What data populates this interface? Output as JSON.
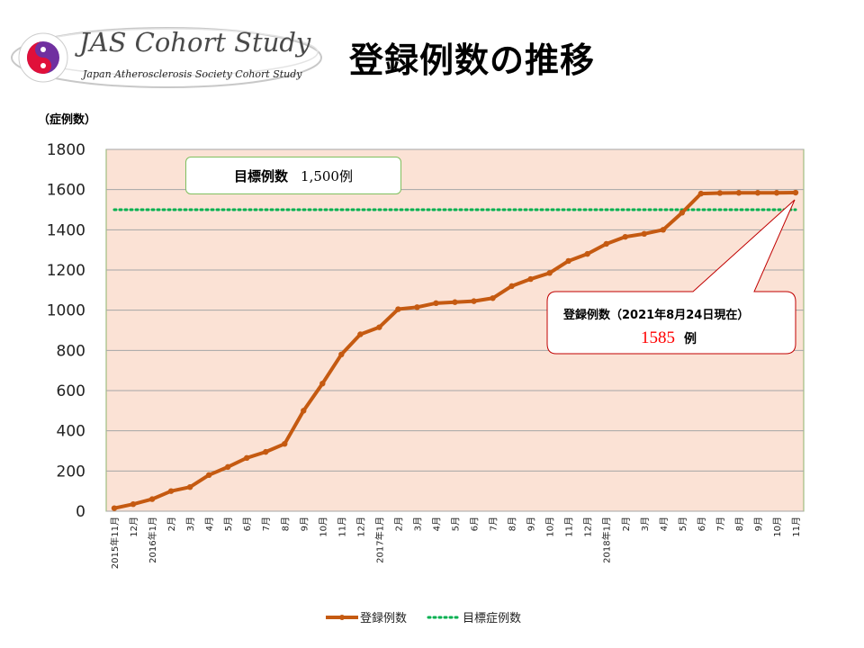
{
  "logo": {
    "title": "JAS Cohort Study",
    "subtitle": "Japan Atherosclerosis Society Cohort Study"
  },
  "page_title": "登録例数の推移",
  "y_unit": "（症例数）",
  "target_box": {
    "label": "目標例数",
    "value": "1,500例"
  },
  "callout": {
    "line1": "登録例数（2021年8月24日現在）",
    "value": "1585",
    "unit": "例"
  },
  "legend": {
    "series1": "登録例数",
    "series2": "目標症例数"
  },
  "colors": {
    "plot_bg": "#fbe2d5",
    "line": "#c55a11",
    "target": "#00b050",
    "grid": "#a6a6a6",
    "callout_value": "#ff0000"
  },
  "chart_data": {
    "type": "line",
    "ylim": [
      0,
      1800
    ],
    "yticks": [
      0,
      200,
      400,
      600,
      800,
      1000,
      1200,
      1400,
      1600,
      1800
    ],
    "grid": true,
    "legend_position": "bottom",
    "categories": [
      "2015年11月",
      "12月",
      "2016年1月",
      "2月",
      "3月",
      "4月",
      "5月",
      "6月",
      "7月",
      "8月",
      "9月",
      "10月",
      "11月",
      "12月",
      "2017年1月",
      "2月",
      "3月",
      "4月",
      "5月",
      "6月",
      "7月",
      "8月",
      "9月",
      "10月",
      "11月",
      "12月",
      "2018年1月",
      "2月",
      "3月",
      "4月",
      "5月",
      "6月",
      "7月",
      "8月",
      "9月",
      "10月",
      "11月"
    ],
    "series": [
      {
        "name": "登録例数",
        "values": [
          15,
          35,
          60,
          100,
          120,
          180,
          220,
          265,
          295,
          335,
          500,
          635,
          780,
          880,
          915,
          1005,
          1015,
          1035,
          1040,
          1045,
          1060,
          1120,
          1155,
          1185,
          1245,
          1280,
          1330,
          1365,
          1380,
          1400,
          1485,
          1580,
          1583,
          1584,
          1584,
          1584,
          1585
        ]
      },
      {
        "name": "目標症例数",
        "values": [
          1500,
          1500,
          1500,
          1500,
          1500,
          1500,
          1500,
          1500,
          1500,
          1500,
          1500,
          1500,
          1500,
          1500,
          1500,
          1500,
          1500,
          1500,
          1500,
          1500,
          1500,
          1500,
          1500,
          1500,
          1500,
          1500,
          1500,
          1500,
          1500,
          1500,
          1500,
          1500,
          1500,
          1500,
          1500,
          1500,
          1500
        ]
      }
    ]
  }
}
